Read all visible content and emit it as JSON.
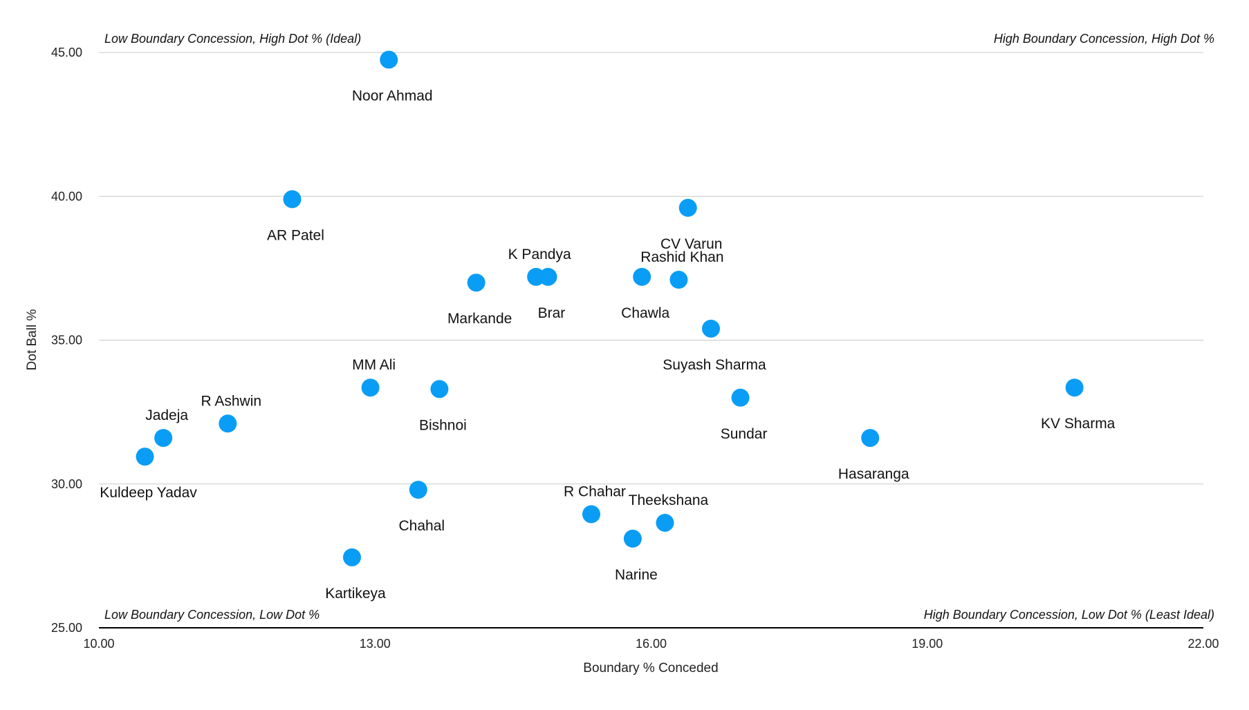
{
  "chart_data": {
    "type": "scatter",
    "xlabel": "Boundary % Conceded",
    "ylabel": "Dot Ball %",
    "xlim": [
      10,
      22
    ],
    "ylim": [
      25,
      45
    ],
    "x_ticks": [
      "10.00",
      "13.00",
      "16.00",
      "19.00",
      "22.00"
    ],
    "y_ticks": [
      "25.00",
      "30.00",
      "35.00",
      "40.00",
      "45.00"
    ],
    "grid": "horizontal",
    "marker_color": "#0A9DF5",
    "quadrant_labels": {
      "top_left": "Low Boundary Concession, High Dot % (Ideal)",
      "top_right": "High Boundary Concession, High Dot %",
      "bottom_left": "Low Boundary Concession, Low Dot %",
      "bottom_right": "High Boundary Concession, Low Dot % (Least Ideal)"
    },
    "points": [
      {
        "label": "Noor Ahmad",
        "x": 13.15,
        "y": 44.75,
        "label_pos": "below"
      },
      {
        "label": "AR Patel",
        "x": 12.1,
        "y": 39.9,
        "label_pos": "below"
      },
      {
        "label": "CV Varun",
        "x": 16.4,
        "y": 39.6,
        "label_pos": "below"
      },
      {
        "label": "K Pandya",
        "x": 14.75,
        "y": 37.2,
        "label_pos": "above"
      },
      {
        "label": "Brar",
        "x": 14.88,
        "y": 37.2,
        "label_pos": "below"
      },
      {
        "label": "Markande",
        "x": 14.1,
        "y": 37.0,
        "label_pos": "below"
      },
      {
        "label": "Chawla",
        "x": 15.9,
        "y": 37.2,
        "label_pos": "below"
      },
      {
        "label": "Rashid Khan",
        "x": 16.3,
        "y": 37.1,
        "label_pos": "above"
      },
      {
        "label": "Suyash Sharma",
        "x": 16.65,
        "y": 35.4,
        "label_pos": "below"
      },
      {
        "label": "MM Ali",
        "x": 12.95,
        "y": 33.35,
        "label_pos": "above"
      },
      {
        "label": "Bishnoi",
        "x": 13.7,
        "y": 33.3,
        "label_pos": "below"
      },
      {
        "label": "Sundar",
        "x": 16.97,
        "y": 33.0,
        "label_pos": "below"
      },
      {
        "label": "KV Sharma",
        "x": 20.6,
        "y": 33.35,
        "label_pos": "below"
      },
      {
        "label": "R Ashwin",
        "x": 11.4,
        "y": 32.1,
        "label_pos": "above"
      },
      {
        "label": "Jadeja",
        "x": 10.7,
        "y": 31.6,
        "label_pos": "above"
      },
      {
        "label": "Hasaranga",
        "x": 18.38,
        "y": 31.6,
        "label_pos": "below"
      },
      {
        "label": "Kuldeep Yadav",
        "x": 10.5,
        "y": 30.95,
        "label_pos": "below"
      },
      {
        "label": "Chahal",
        "x": 13.47,
        "y": 29.8,
        "label_pos": "below"
      },
      {
        "label": "R Chahar",
        "x": 15.35,
        "y": 28.95,
        "label_pos": "above"
      },
      {
        "label": "Theekshana",
        "x": 16.15,
        "y": 28.65,
        "label_pos": "above"
      },
      {
        "label": "Narine",
        "x": 15.8,
        "y": 28.1,
        "label_pos": "below"
      },
      {
        "label": "Kartikeya",
        "x": 12.75,
        "y": 27.45,
        "label_pos": "below"
      }
    ]
  }
}
